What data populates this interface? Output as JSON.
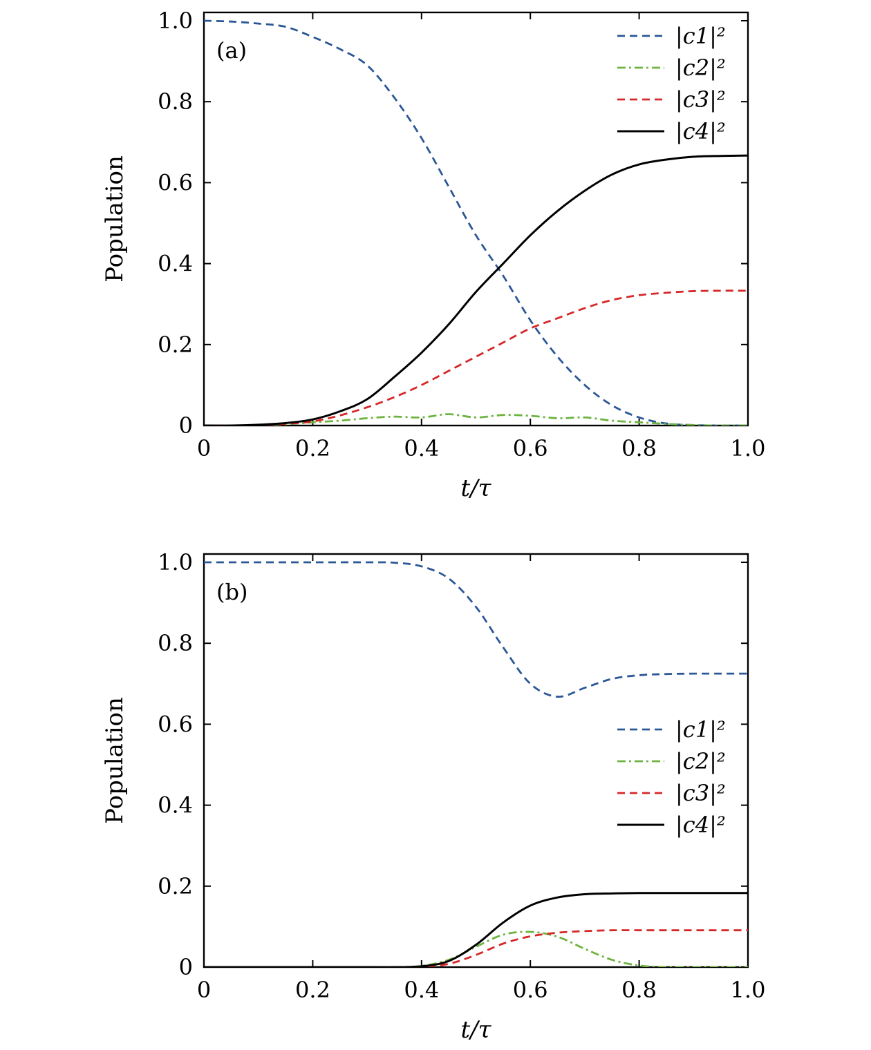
{
  "chart_data": [
    {
      "type": "line",
      "panel_label": "(a)",
      "xlabel": "t/τ",
      "ylabel": "Population",
      "xlim": [
        0,
        1.0
      ],
      "ylim": [
        0,
        1.0
      ],
      "xticks": [
        "0",
        "0.2",
        "0.4",
        "0.6",
        "0.8",
        "1.0"
      ],
      "yticks": [
        "0",
        "0.2",
        "0.4",
        "0.6",
        "0.8",
        "1.0"
      ],
      "grid": false,
      "legend_position": "top-right",
      "series": [
        {
          "name": "|c1|²",
          "color": "#2b5797",
          "style": "dashed",
          "x": [
            0,
            0.05,
            0.1,
            0.15,
            0.2,
            0.25,
            0.3,
            0.35,
            0.4,
            0.45,
            0.5,
            0.55,
            0.6,
            0.65,
            0.7,
            0.75,
            0.8,
            0.85,
            0.9,
            0.95,
            1.0
          ],
          "y": [
            1.0,
            0.998,
            0.993,
            0.985,
            0.96,
            0.93,
            0.89,
            0.81,
            0.71,
            0.59,
            0.47,
            0.37,
            0.26,
            0.17,
            0.1,
            0.05,
            0.02,
            0.005,
            0.001,
            0.0,
            0.0
          ]
        },
        {
          "name": "|c2|²",
          "color": "#6cb33f",
          "style": "dashdot",
          "x": [
            0,
            0.05,
            0.1,
            0.15,
            0.2,
            0.25,
            0.3,
            0.35,
            0.4,
            0.45,
            0.5,
            0.55,
            0.6,
            0.65,
            0.7,
            0.75,
            0.8,
            0.85,
            0.9,
            0.95,
            1.0
          ],
          "y": [
            0,
            0,
            0.001,
            0.003,
            0.008,
            0.012,
            0.018,
            0.022,
            0.02,
            0.028,
            0.02,
            0.026,
            0.024,
            0.018,
            0.02,
            0.012,
            0.008,
            0.004,
            0.001,
            0.0,
            0.0
          ]
        },
        {
          "name": "|c3|²",
          "color": "#d62728",
          "style": "dashed",
          "x": [
            0,
            0.05,
            0.1,
            0.15,
            0.2,
            0.25,
            0.3,
            0.35,
            0.4,
            0.45,
            0.5,
            0.55,
            0.6,
            0.65,
            0.7,
            0.75,
            0.8,
            0.85,
            0.9,
            0.95,
            1.0
          ],
          "y": [
            0,
            0,
            0.001,
            0.004,
            0.01,
            0.025,
            0.045,
            0.07,
            0.1,
            0.135,
            0.17,
            0.205,
            0.24,
            0.265,
            0.29,
            0.31,
            0.322,
            0.328,
            0.332,
            0.333,
            0.333
          ]
        },
        {
          "name": "|c4|²",
          "color": "#000000",
          "style": "solid",
          "x": [
            0,
            0.05,
            0.1,
            0.15,
            0.2,
            0.25,
            0.3,
            0.35,
            0.4,
            0.45,
            0.5,
            0.55,
            0.6,
            0.65,
            0.7,
            0.75,
            0.8,
            0.85,
            0.9,
            0.95,
            1.0
          ],
          "y": [
            0,
            0,
            0.002,
            0.006,
            0.015,
            0.035,
            0.065,
            0.12,
            0.18,
            0.25,
            0.33,
            0.4,
            0.47,
            0.53,
            0.58,
            0.62,
            0.645,
            0.657,
            0.664,
            0.666,
            0.667
          ]
        }
      ]
    },
    {
      "type": "line",
      "panel_label": "(b)",
      "xlabel": "t/τ",
      "ylabel": "Population",
      "xlim": [
        0,
        1.0
      ],
      "ylim": [
        0,
        1.0
      ],
      "xticks": [
        "0",
        "0.2",
        "0.4",
        "0.6",
        "0.8",
        "1.0"
      ],
      "yticks": [
        "0",
        "0.2",
        "0.4",
        "0.6",
        "0.8",
        "1.0"
      ],
      "grid": false,
      "legend_position": "center-right",
      "series": [
        {
          "name": "|c1|²",
          "color": "#2b5797",
          "style": "dashed",
          "x": [
            0,
            0.1,
            0.2,
            0.3,
            0.35,
            0.4,
            0.45,
            0.5,
            0.55,
            0.6,
            0.65,
            0.7,
            0.75,
            0.8,
            0.85,
            0.9,
            0.95,
            1.0
          ],
          "y": [
            1.0,
            1.0,
            1.0,
            1.0,
            0.999,
            0.99,
            0.96,
            0.89,
            0.79,
            0.7,
            0.668,
            0.69,
            0.712,
            0.721,
            0.724,
            0.725,
            0.725,
            0.725
          ],
          "lastValue": 0.725
        },
        {
          "name": "|c2|²",
          "color": "#6cb33f",
          "style": "dashdot",
          "x": [
            0,
            0.1,
            0.2,
            0.3,
            0.35,
            0.4,
            0.45,
            0.5,
            0.55,
            0.6,
            0.65,
            0.7,
            0.75,
            0.8,
            0.85,
            0.9,
            0.95,
            1.0
          ],
          "y": [
            0,
            0,
            0,
            0,
            0,
            0.003,
            0.018,
            0.05,
            0.08,
            0.087,
            0.075,
            0.045,
            0.018,
            0.004,
            0.0,
            0.0,
            0.0,
            0.0
          ]
        },
        {
          "name": "|c3|²",
          "color": "#d62728",
          "style": "dashed",
          "x": [
            0,
            0.1,
            0.2,
            0.3,
            0.35,
            0.4,
            0.45,
            0.5,
            0.55,
            0.6,
            0.65,
            0.7,
            0.75,
            0.8,
            0.85,
            0.9,
            0.95,
            1.0
          ],
          "y": [
            0,
            0,
            0,
            0,
            0,
            0.001,
            0.008,
            0.03,
            0.058,
            0.076,
            0.085,
            0.089,
            0.091,
            0.091,
            0.091,
            0.091,
            0.091,
            0.091
          ]
        },
        {
          "name": "|c4|²",
          "color": "#000000",
          "style": "solid",
          "x": [
            0,
            0.1,
            0.2,
            0.3,
            0.35,
            0.4,
            0.45,
            0.5,
            0.55,
            0.6,
            0.65,
            0.7,
            0.75,
            0.8,
            0.85,
            0.9,
            0.95,
            1.0
          ],
          "y": [
            0,
            0,
            0,
            0,
            0,
            0.002,
            0.015,
            0.055,
            0.11,
            0.152,
            0.172,
            0.18,
            0.182,
            0.183,
            0.183,
            0.183,
            0.183,
            0.183
          ]
        }
      ]
    }
  ]
}
